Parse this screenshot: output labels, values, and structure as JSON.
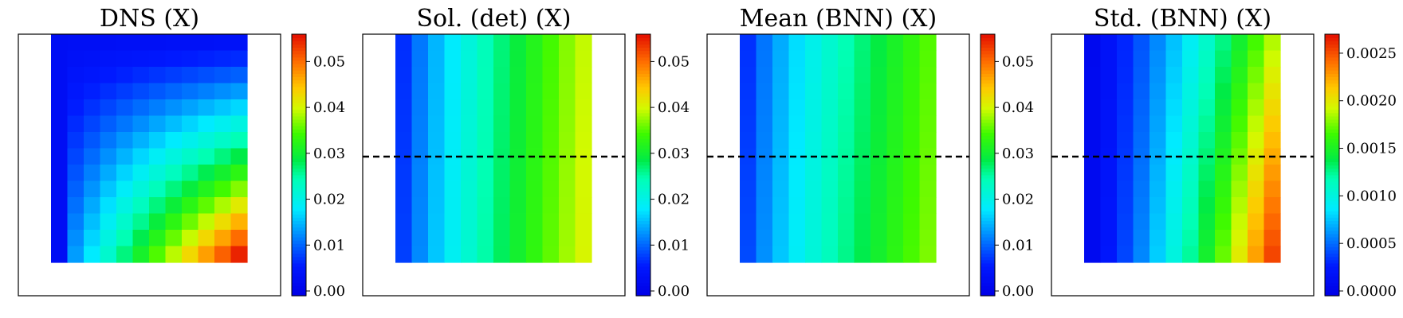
{
  "chart_data": [
    {
      "type": "heatmap",
      "title": "DNS (X)",
      "field": "dns",
      "has_dashed_line": false,
      "colorbar_ticks": [
        "0.00",
        "0.01",
        "0.02",
        "0.03",
        "0.04",
        "0.05"
      ],
      "colorbar_tick_values": [
        0.0,
        0.01,
        0.02,
        0.03,
        0.04,
        0.05
      ],
      "vmin": 0.0,
      "vmax": 0.057
    },
    {
      "type": "heatmap",
      "title": "Sol. (det) (X)",
      "field": "det",
      "has_dashed_line": true,
      "colorbar_ticks": [
        "0.00",
        "0.01",
        "0.02",
        "0.03",
        "0.04",
        "0.05"
      ],
      "colorbar_tick_values": [
        0.0,
        0.01,
        0.02,
        0.03,
        0.04,
        0.05
      ],
      "vmin": 0.0,
      "vmax": 0.057
    },
    {
      "type": "heatmap",
      "title": "Mean (BNN) (X)",
      "field": "mean",
      "has_dashed_line": true,
      "colorbar_ticks": [
        "0.00",
        "0.01",
        "0.02",
        "0.03",
        "0.04",
        "0.05"
      ],
      "colorbar_tick_values": [
        0.0,
        0.01,
        0.02,
        0.03,
        0.04,
        0.05
      ],
      "vmin": 0.0,
      "vmax": 0.057
    },
    {
      "type": "heatmap",
      "title": "Std. (BNN) (X)",
      "field": "std",
      "has_dashed_line": true,
      "colorbar_ticks": [
        "0.0000",
        "0.0005",
        "0.0010",
        "0.0015",
        "0.0020",
        "0.0025"
      ],
      "colorbar_tick_values": [
        0.0,
        0.0005,
        0.001,
        0.0015,
        0.002,
        0.0025
      ],
      "vmin": 0.0,
      "vmax": 0.00275
    }
  ]
}
